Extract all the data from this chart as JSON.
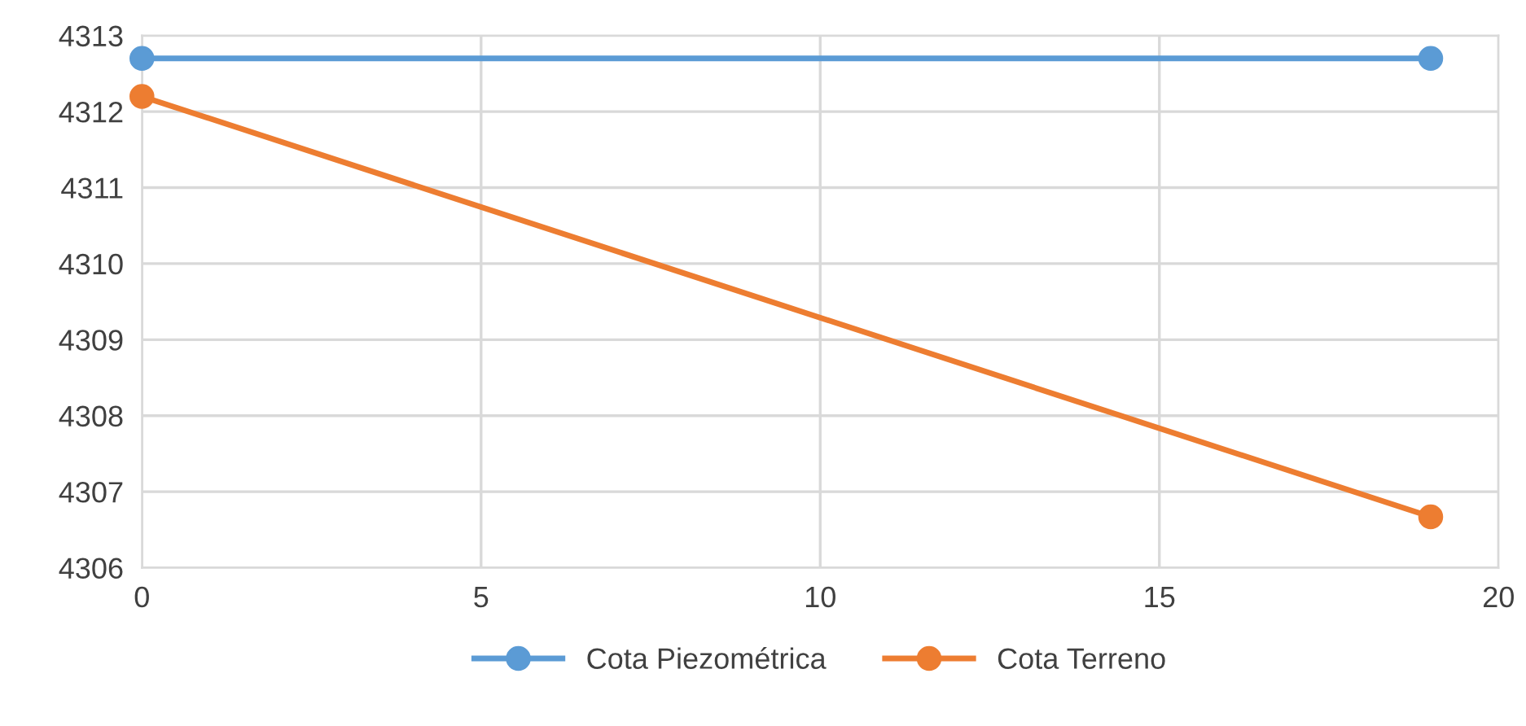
{
  "chart_data": {
    "type": "line",
    "x": [
      0,
      19
    ],
    "series": [
      {
        "name": "Cota Piezométrica",
        "color": "#5b9bd5",
        "values": [
          4312.7,
          4312.7
        ]
      },
      {
        "name": "Cota Terreno",
        "color": "#ed7d31",
        "values": [
          4312.2,
          4306.67
        ]
      }
    ],
    "xlim": [
      0,
      20
    ],
    "xticks": [
      0,
      5,
      10,
      15,
      20
    ],
    "ylim": [
      4306,
      4313
    ],
    "yticks": [
      4306,
      4307,
      4308,
      4309,
      4310,
      4311,
      4312,
      4313
    ],
    "grid": true,
    "legend": "bottom",
    "marker": "circle",
    "line_style": "solid"
  }
}
